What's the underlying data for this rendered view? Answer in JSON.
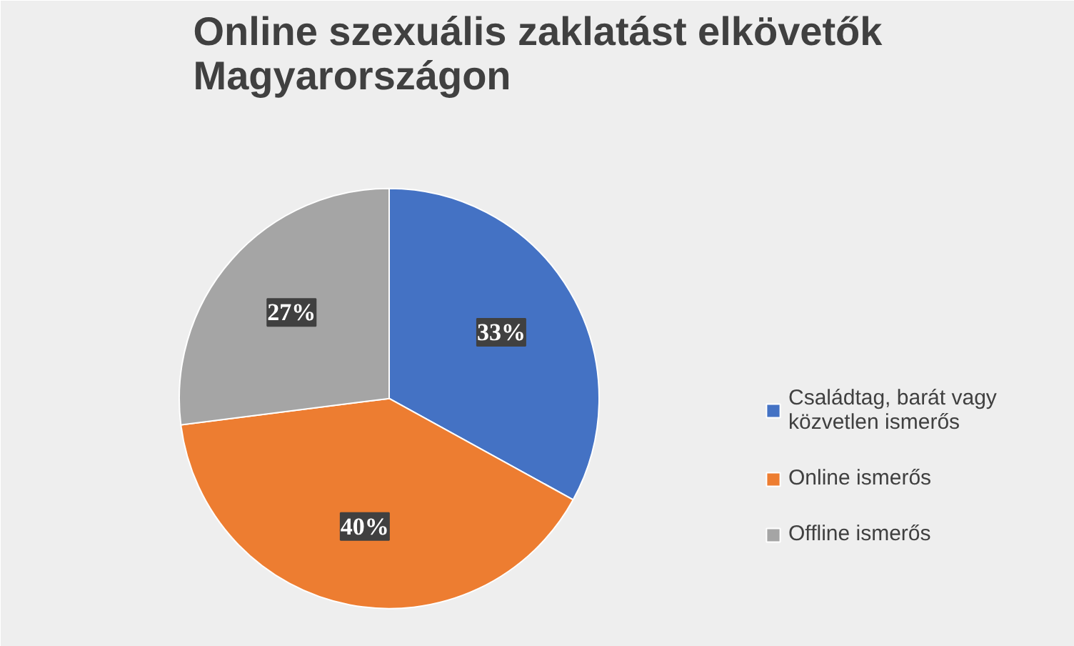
{
  "chart_data": {
    "type": "pie",
    "title": "Online szexuális zaklatást elkövetők Magyarországon",
    "categories": [
      "Családtag, barát vagy közvetlen ismerős",
      "Online ismerős",
      "Offline ismerős"
    ],
    "values": [
      33,
      40,
      27
    ],
    "colors": [
      "#4472c4",
      "#ed7d31",
      "#a5a5a5"
    ],
    "value_labels": [
      "33%",
      "40%",
      "27%"
    ],
    "legend": "right"
  }
}
